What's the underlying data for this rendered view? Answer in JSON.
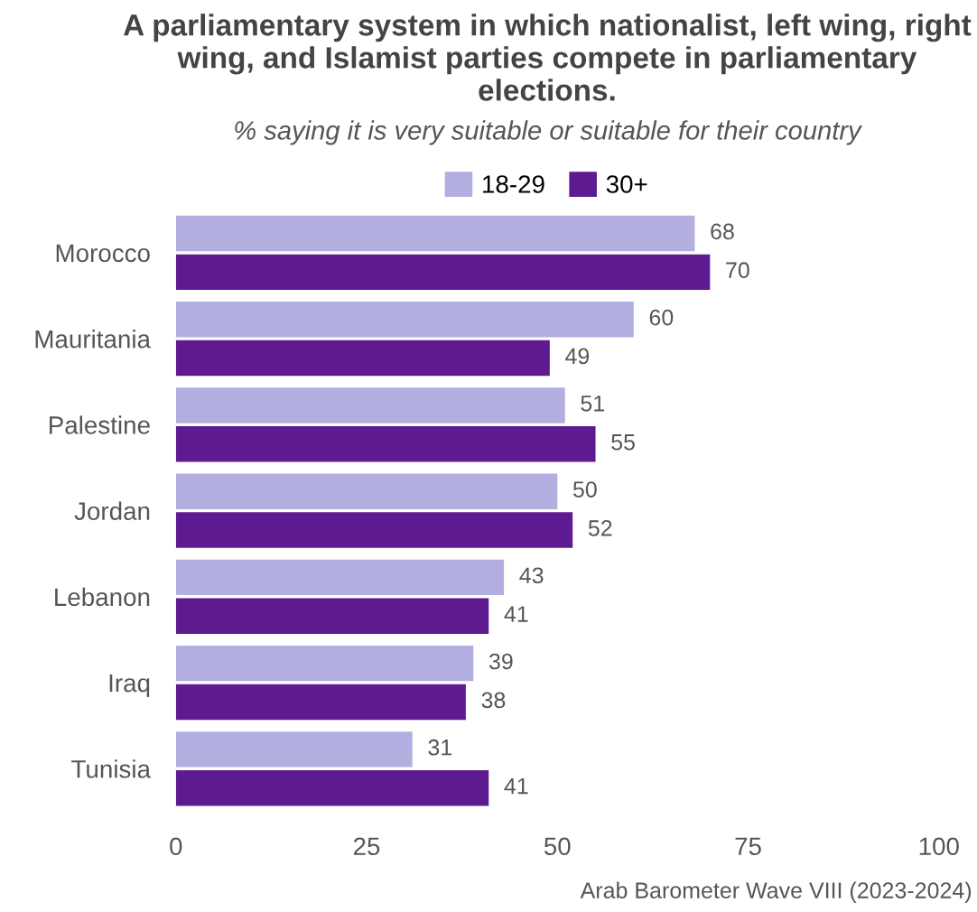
{
  "chart_data": {
    "type": "bar",
    "orientation": "horizontal",
    "title": "A parliamentary system in which nationalist, left wing, right wing, and Islamist parties compete in parliamentary elections.",
    "subtitle": "% saying it is very suitable or suitable for their country",
    "categories": [
      "Morocco",
      "Mauritania",
      "Palestine",
      "Jordan",
      "Lebanon",
      "Iraq",
      "Tunisia"
    ],
    "series": [
      {
        "name": "18-29",
        "color": "#b3aee0",
        "values": [
          68,
          60,
          51,
          50,
          43,
          39,
          31
        ]
      },
      {
        "name": "30+",
        "color": "#5e1a91",
        "values": [
          70,
          49,
          55,
          52,
          41,
          38,
          41
        ]
      }
    ],
    "xlim": [
      0,
      100
    ],
    "xticks": [
      0,
      25,
      50,
      75,
      100
    ],
    "data_labels": true,
    "legend": "top",
    "grid": false,
    "annotations": [
      "Arab Barometer Wave VIII (2023-2024)"
    ]
  }
}
